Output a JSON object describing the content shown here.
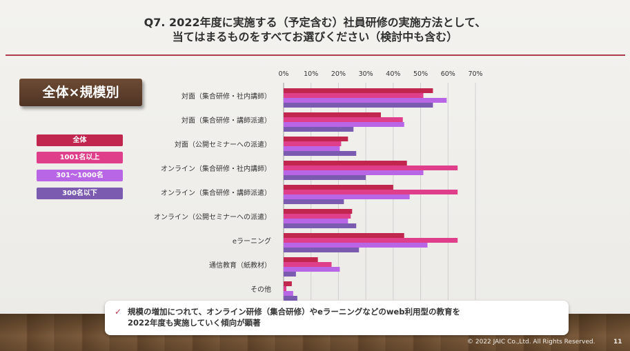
{
  "header": {
    "line1": "Q7. 2022年度に実施する（予定含む）社員研修の実施方法として、",
    "line2": "当てはまるものをすべてお選びください（検討中も含む）"
  },
  "badge": "全体×規模別",
  "colors": {
    "accent": "#b33a4c",
    "series": [
      "#c0264e",
      "#df3f8a",
      "#b866e6",
      "#7b5bb0"
    ]
  },
  "chart_data": {
    "type": "bar",
    "orientation": "horizontal",
    "title": "",
    "xlabel": "",
    "ylabel": "",
    "xlim": [
      0,
      70
    ],
    "x_ticks": [
      "0%",
      "10%",
      "20%",
      "30%",
      "40%",
      "50%",
      "60%",
      "70%"
    ],
    "grid": true,
    "legend_position": "left",
    "categories": [
      "対面（集合研修・社内講師）",
      "対面（集合研修・講師派遣）",
      "対面（公開セミナーへの派遣）",
      "オンライン（集合研修・社内講師）",
      "オンライン（集合研修・講師派遣）",
      "オンライン（公開セミナーへの派遣）",
      "eラーニング",
      "通信教育（紙教材）",
      "その他"
    ],
    "series": [
      {
        "name": "全体",
        "values": [
          54.5,
          35.5,
          23.5,
          45.0,
          40.0,
          25.0,
          44.0,
          12.5,
          3.0
        ]
      },
      {
        "name": "1001名以上",
        "values": [
          51.0,
          43.5,
          21.0,
          63.5,
          63.5,
          24.5,
          63.5,
          17.5,
          1.0
        ]
      },
      {
        "name": "301〜1000名",
        "values": [
          59.5,
          44.0,
          20.5,
          51.0,
          46.0,
          23.5,
          52.5,
          20.5,
          3.5
        ]
      },
      {
        "name": "300名以下",
        "values": [
          54.5,
          25.5,
          26.5,
          30.0,
          22.0,
          26.5,
          27.5,
          4.5,
          5.0
        ]
      }
    ]
  },
  "callout": {
    "check": "✓",
    "line1": "規模の増加につれて、オンライン研修（集合研修）やeラーニングなどのweb利用型の教育を",
    "line2": "2022年度も実施していく傾向が顕著"
  },
  "footer": {
    "copyright": "© 2022 JAIC Co.,Ltd. All Rights Reserved.",
    "page": "11"
  }
}
